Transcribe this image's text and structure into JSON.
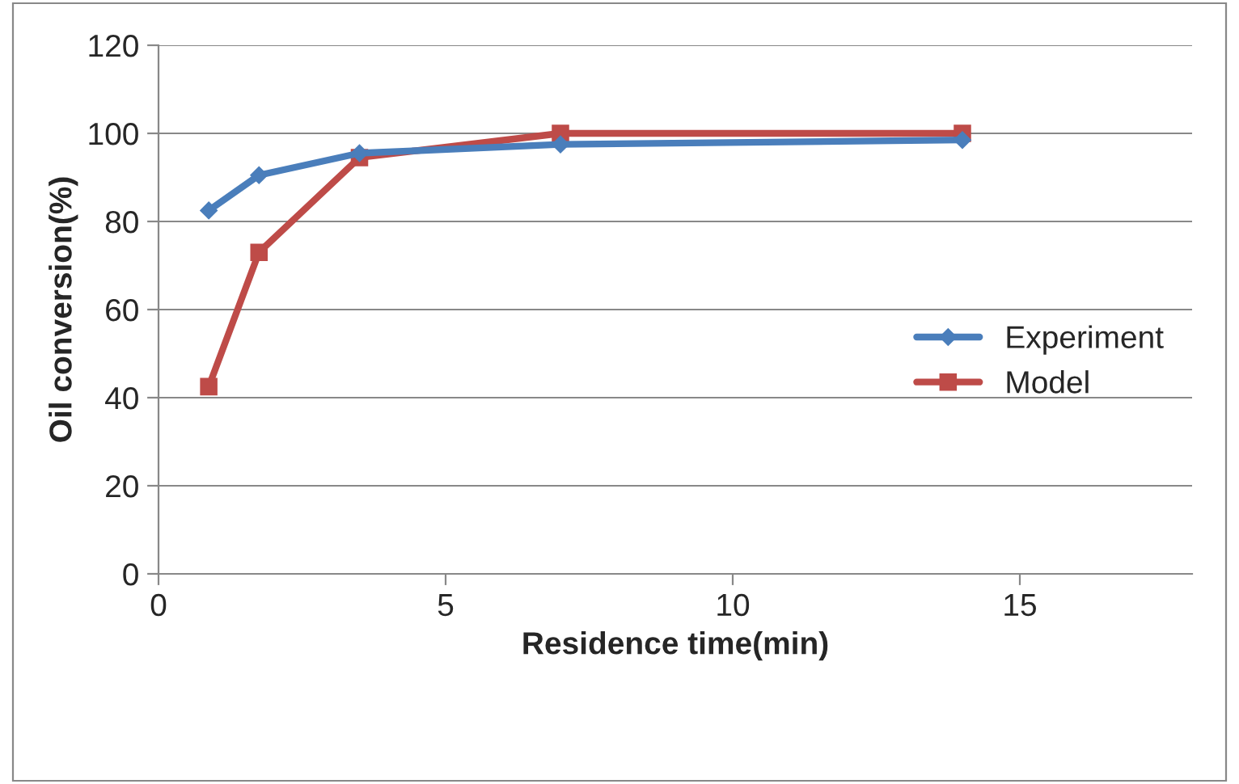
{
  "chart_data": {
    "type": "line",
    "xlabel": "Residence time(min)",
    "ylabel": "Oil conversion(%)",
    "x": [
      0.875,
      1.75,
      3.5,
      7,
      14
    ],
    "series": [
      {
        "name": "Experiment",
        "color": "#4a7ebb",
        "marker": "diamond",
        "values": [
          82.5,
          90.5,
          95.5,
          97.5,
          98.5
        ]
      },
      {
        "name": "Model",
        "color": "#be4b48",
        "marker": "square",
        "values": [
          42.5,
          73,
          94.5,
          100,
          100
        ]
      }
    ],
    "xlim": [
      0,
      18
    ],
    "xticks": [
      0,
      5,
      10,
      15
    ],
    "ylim": [
      0,
      120
    ],
    "yticks": [
      0,
      20,
      40,
      60,
      80,
      100,
      120
    ],
    "grid": "y",
    "legend": "right",
    "line_style": "solid"
  }
}
